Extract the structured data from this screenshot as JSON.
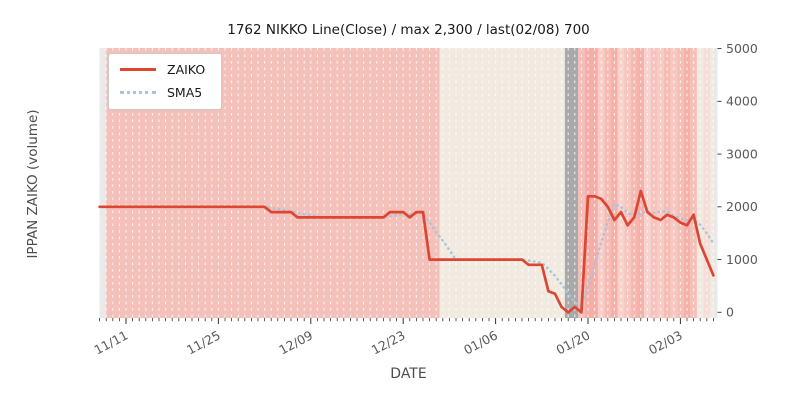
{
  "chart_data": {
    "type": "line",
    "title": "1762 NIKKO Line(Close) / max 2,300 / last(02/08) 700",
    "xlabel": "DATE",
    "ylabel": "IPPAN ZAIKO (volume)",
    "x_start_date": "11/07",
    "x_end_date": "02/08",
    "day_count": 94,
    "x_tick_labels": [
      "11/11",
      "11/25",
      "12/09",
      "12/23",
      "01/06",
      "01/20",
      "02/03"
    ],
    "x_tick_day_indices": [
      4,
      18,
      32,
      46,
      60,
      74,
      88
    ],
    "y_ticks": [
      0,
      1000,
      2000,
      3000,
      4000,
      5000
    ],
    "ylim": [
      -110,
      5010
    ],
    "grid": "daily vertical white dashed lines",
    "legend_position": "upper-left",
    "series": [
      {
        "name": "ZAIKO",
        "color": "#dc4632",
        "style": "solid",
        "values": [
          2000,
          2000,
          2000,
          2000,
          2000,
          2000,
          2000,
          2000,
          2000,
          2000,
          2000,
          2000,
          2000,
          2000,
          2000,
          2000,
          2000,
          2000,
          2000,
          2000,
          2000,
          2000,
          2000,
          2000,
          2000,
          2000,
          1900,
          1900,
          1900,
          1900,
          1800,
          1800,
          1800,
          1800,
          1800,
          1800,
          1800,
          1800,
          1800,
          1800,
          1800,
          1800,
          1800,
          1800,
          1900,
          1900,
          1900,
          1800,
          1900,
          1900,
          1000,
          1000,
          1000,
          1000,
          1000,
          1000,
          1000,
          1000,
          1000,
          1000,
          1000,
          1000,
          1000,
          1000,
          1000,
          900,
          900,
          900,
          400,
          350,
          100,
          0,
          100,
          0,
          2200,
          2200,
          2150,
          2000,
          1750,
          1900,
          1650,
          1800,
          2300,
          1900,
          1800,
          1750,
          1850,
          1800,
          1700,
          1650,
          1850,
          1300,
          1000,
          700
        ]
      },
      {
        "name": "SMA5",
        "color": "#a6c4dd",
        "style": "dotted",
        "derived": "5-day trailing moving average of ZAIKO"
      }
    ],
    "background_bands": [
      {
        "from_day": 1,
        "to_day": 51.5,
        "color": "#f3c1b9"
      },
      {
        "from_day": 51.5,
        "to_day": 70.5,
        "color": "#f1eae0"
      },
      {
        "from_day": 70.5,
        "to_day": 72.5,
        "color": "#a9a9ab"
      },
      {
        "from_day": 72.5,
        "to_day": 73.5,
        "color": "#f5beb6"
      },
      {
        "from_day": 73.5,
        "to_day": 75.5,
        "color": "#f4aea7"
      },
      {
        "from_day": 75.5,
        "to_day": 76.5,
        "color": "#f7cdc7"
      },
      {
        "from_day": 76.5,
        "to_day": 77.5,
        "color": "#f5bcb4"
      },
      {
        "from_day": 77.5,
        "to_day": 78.5,
        "color": "#f4b0a9"
      },
      {
        "from_day": 78.5,
        "to_day": 79.5,
        "color": "#f8d1cb"
      },
      {
        "from_day": 79.5,
        "to_day": 80.5,
        "color": "#f6c6bf"
      },
      {
        "from_day": 80.5,
        "to_day": 81.5,
        "color": "#f5b9b1"
      },
      {
        "from_day": 81.5,
        "to_day": 82.5,
        "color": "#f4b0a9"
      },
      {
        "from_day": 82.5,
        "to_day": 83.5,
        "color": "#f8d3cd"
      },
      {
        "from_day": 83.5,
        "to_day": 84.5,
        "color": "#f6c2bb"
      },
      {
        "from_day": 84.5,
        "to_day": 85.5,
        "color": "#f7cac3"
      },
      {
        "from_day": 85.5,
        "to_day": 86.5,
        "color": "#f5bdb6"
      },
      {
        "from_day": 86.5,
        "to_day": 87.5,
        "color": "#f7c8c1"
      },
      {
        "from_day": 87.5,
        "to_day": 88.5,
        "color": "#f5beb7"
      },
      {
        "from_day": 88.5,
        "to_day": 89.5,
        "color": "#f4b1aa"
      },
      {
        "from_day": 89.5,
        "to_day": 90.5,
        "color": "#f5c0b8"
      },
      {
        "from_day": 90.5,
        "to_day": 91.5,
        "color": "#f1eae0"
      },
      {
        "from_day": 91.5,
        "to_day": 92.5,
        "color": "#f7ddd7"
      },
      {
        "from_day": 92.5,
        "to_day": 93.0,
        "color": "#f1eae0"
      }
    ],
    "colors": {
      "plot_background": "#e9e9e9",
      "gridline": "#ffffff",
      "tick_mark": "#333333",
      "tick_label": "#595959",
      "axis_label": "#4d4d4d",
      "title": "#1a1a1a",
      "zaiko_line": "#dc4632",
      "sma5_line": "#a6c4dd",
      "gray_band": "#a9a9ab"
    }
  }
}
